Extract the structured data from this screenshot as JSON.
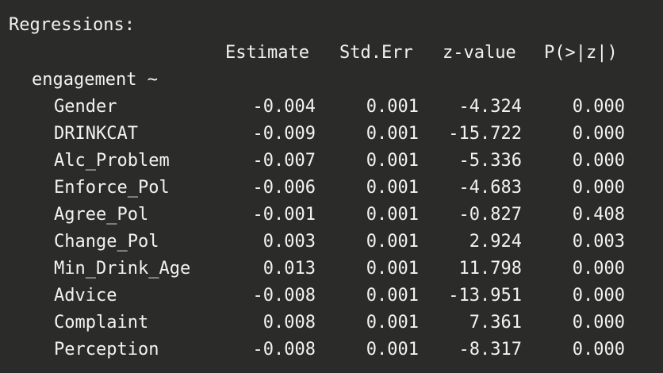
{
  "console": {
    "heading": "Regressions:",
    "columns": {
      "estimate": "Estimate",
      "std_err": "Std.Err",
      "z_value": "z-value",
      "p_value": "P(>|z|)"
    },
    "group_label": "engagement ~",
    "rows": [
      {
        "name": "Gender",
        "estimate": "-0.004",
        "std_err": "0.001",
        "z_value": "-4.324",
        "p_value": "0.000"
      },
      {
        "name": "DRINKCAT",
        "estimate": "-0.009",
        "std_err": "0.001",
        "z_value": "-15.722",
        "p_value": "0.000"
      },
      {
        "name": "Alc_Problem",
        "estimate": "-0.007",
        "std_err": "0.001",
        "z_value": "-5.336",
        "p_value": "0.000"
      },
      {
        "name": "Enforce_Pol",
        "estimate": "-0.006",
        "std_err": "0.001",
        "z_value": "-4.683",
        "p_value": "0.000"
      },
      {
        "name": "Agree_Pol",
        "estimate": "-0.001",
        "std_err": "0.001",
        "z_value": "-0.827",
        "p_value": "0.408"
      },
      {
        "name": "Change_Pol",
        "estimate": "0.003",
        "std_err": "0.001",
        "z_value": "2.924",
        "p_value": "0.003"
      },
      {
        "name": "Min_Drink_Age",
        "estimate": "0.013",
        "std_err": "0.001",
        "z_value": "11.798",
        "p_value": "0.000"
      },
      {
        "name": "Advice",
        "estimate": "-0.008",
        "std_err": "0.001",
        "z_value": "-13.951",
        "p_value": "0.000"
      },
      {
        "name": "Complaint",
        "estimate": "0.008",
        "std_err": "0.001",
        "z_value": "7.361",
        "p_value": "0.000"
      },
      {
        "name": "Perception",
        "estimate": "-0.008",
        "std_err": "0.001",
        "z_value": "-8.317",
        "p_value": "0.000"
      }
    ]
  },
  "colors": {
    "background": "#2b2b2a",
    "text": "#f2f2f2"
  }
}
